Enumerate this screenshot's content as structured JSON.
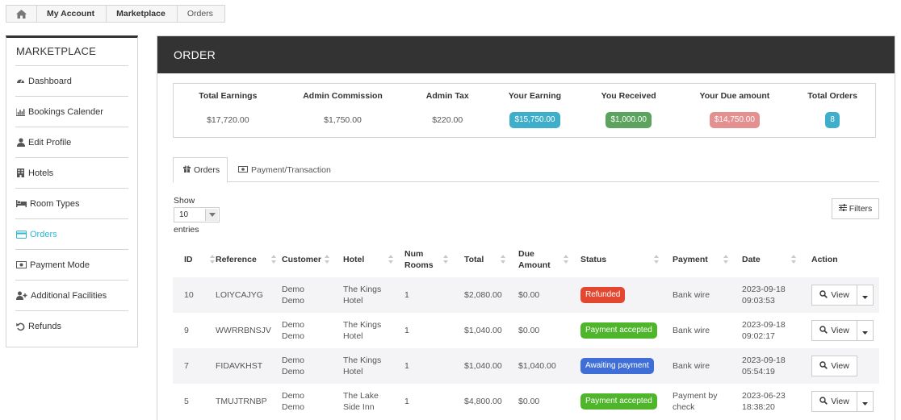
{
  "breadcrumb": {
    "items": [
      "My Account",
      "Marketplace",
      "Orders"
    ],
    "home_icon": "home-icon"
  },
  "sidebar": {
    "title": "MARKETPLACE",
    "items": [
      {
        "label": "Dashboard",
        "icon": "dashboard-icon"
      },
      {
        "label": "Bookings Calender",
        "icon": "bar-chart-icon"
      },
      {
        "label": "Edit Profile",
        "icon": "user-icon"
      },
      {
        "label": "Hotels",
        "icon": "building-icon"
      },
      {
        "label": "Room Types",
        "icon": "bed-icon"
      },
      {
        "label": "Orders",
        "icon": "credit-card-icon",
        "active": true
      },
      {
        "label": "Payment Mode",
        "icon": "money-icon"
      },
      {
        "label": "Additional Facilities",
        "icon": "user-plus-icon"
      },
      {
        "label": "Refunds",
        "icon": "undo-icon"
      }
    ],
    "active_color": "#2fb5d2"
  },
  "header": {
    "title": "ORDER"
  },
  "stats": [
    {
      "label": "Total Earnings",
      "value": "$17,720.00"
    },
    {
      "label": "Admin Commission",
      "value": "$1,750.00"
    },
    {
      "label": "Admin Tax",
      "value": "$220.00"
    },
    {
      "label": "Your Earning",
      "value": "$15,750.00",
      "color": "#3eaecb"
    },
    {
      "label": "You Received",
      "value": "$1,000.00",
      "color": "#5ba35f"
    },
    {
      "label": "Your Due amount",
      "value": "$14,750.00",
      "color": "#e49090"
    },
    {
      "label": "Total Orders",
      "value": "8",
      "color": "#3eaecb"
    }
  ],
  "tabs": [
    {
      "label": "Orders",
      "icon": "gift-icon",
      "active": true
    },
    {
      "label": "Payment/Transaction",
      "icon": "money-icon"
    }
  ],
  "length_menu": {
    "show_label": "Show",
    "value": "10",
    "entries_label": "entries"
  },
  "filters_button": {
    "label": "Filters",
    "icon": "sliders-icon"
  },
  "table": {
    "columns": [
      "ID",
      "Reference",
      "Customer",
      "Hotel",
      "Num Rooms",
      "Total",
      "Due Amount",
      "Status",
      "Payment",
      "Date",
      "Action"
    ],
    "rows": [
      {
        "id": "10",
        "reference": "LOIYCAJYG",
        "customer": "Demo Demo",
        "hotel": "The Kings Hotel",
        "rooms": "1",
        "total": "$2,080.00",
        "due": "$0.00",
        "status": "Refunded",
        "status_color": "#e4472f",
        "payment": "Bank wire",
        "date": "2023-09-18 09:03:53",
        "action": "View",
        "has_dropdown": true
      },
      {
        "id": "9",
        "reference": "WWRRBNSJV",
        "customer": "Demo Demo",
        "hotel": "The Kings Hotel",
        "rooms": "1",
        "total": "$1,040.00",
        "due": "$0.00",
        "status": "Payment accepted",
        "status_color": "#4fb52a",
        "payment": "Bank wire",
        "date": "2023-09-18 09:02:17",
        "action": "View",
        "has_dropdown": true
      },
      {
        "id": "7",
        "reference": "FIDAVKHST",
        "customer": "Demo Demo",
        "hotel": "The Kings Hotel",
        "rooms": "1",
        "total": "$1,040.00",
        "due": "$1,040.00",
        "status": "Awaiting payment",
        "status_color": "#3e6ed6",
        "payment": "Bank wire",
        "date": "2023-09-18 05:54:19",
        "action": "View",
        "has_dropdown": false
      },
      {
        "id": "5",
        "reference": "TMUJTRNBP",
        "customer": "Demo Demo",
        "hotel": "The Lake Side Inn",
        "rooms": "1",
        "total": "$4,800.00",
        "due": "$0.00",
        "status": "Payment accepted",
        "status_color": "#4fb52a",
        "payment": "Payment by check",
        "date": "2023-06-23 18:38:20",
        "action": "View",
        "has_dropdown": true
      }
    ]
  }
}
